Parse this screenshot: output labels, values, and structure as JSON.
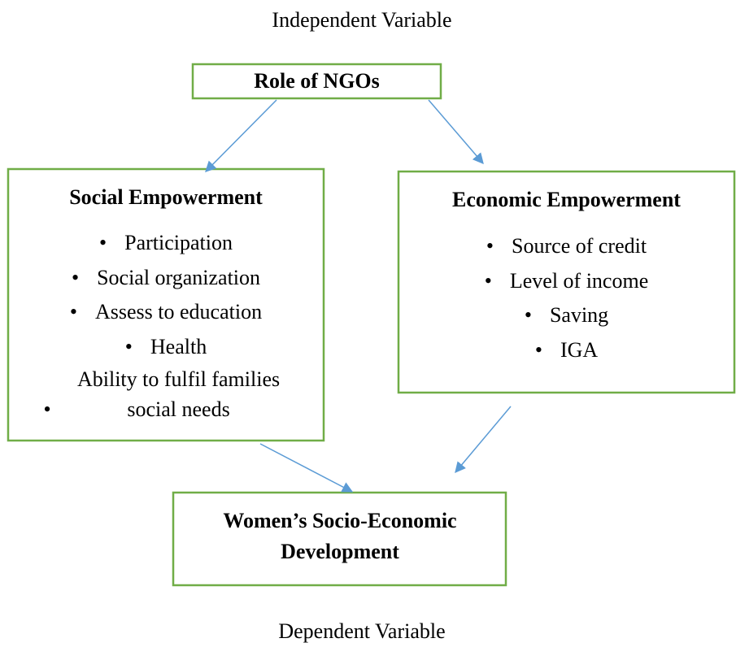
{
  "top_label": "Independent Variable",
  "nodes": [
    {
      "title": "Role of NGOs"
    },
    {
      "title": "Social Empowerment",
      "items": [
        "Participation",
        "Social organization",
        "Assess to education",
        "Health",
        "Ability to fulfil families social needs"
      ]
    },
    {
      "title": "Economic Empowerment",
      "items": [
        "Source of credit",
        "Level of income",
        "Saving",
        "IGA"
      ]
    },
    {
      "title": "Women’s Socio-Economic Development"
    }
  ],
  "bottom_label": "Dependent Variable"
}
